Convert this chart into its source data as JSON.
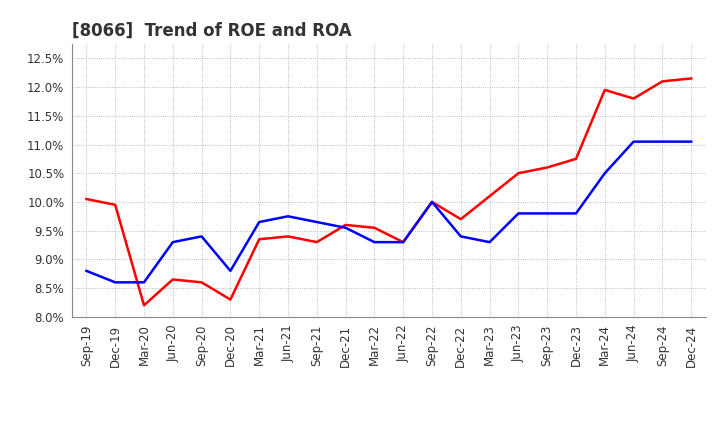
{
  "title": "[8066]  Trend of ROE and ROA",
  "x_labels": [
    "Sep-19",
    "Dec-19",
    "Mar-20",
    "Jun-20",
    "Sep-20",
    "Dec-20",
    "Mar-21",
    "Jun-21",
    "Sep-21",
    "Dec-21",
    "Mar-22",
    "Jun-22",
    "Sep-22",
    "Dec-22",
    "Mar-23",
    "Jun-23",
    "Sep-23",
    "Dec-23",
    "Mar-24",
    "Jun-24",
    "Sep-24",
    "Dec-24"
  ],
  "roe": [
    10.05,
    9.95,
    8.2,
    8.65,
    8.6,
    8.3,
    9.35,
    9.4,
    9.3,
    9.6,
    9.55,
    9.3,
    10.0,
    9.7,
    10.1,
    10.5,
    10.6,
    10.75,
    11.95,
    11.8,
    12.1,
    12.15
  ],
  "roa": [
    8.8,
    8.6,
    8.6,
    9.3,
    9.4,
    8.8,
    9.65,
    9.75,
    9.65,
    9.55,
    9.3,
    9.3,
    10.0,
    9.4,
    9.3,
    9.8,
    9.8,
    9.8,
    10.5,
    11.05,
    11.05,
    11.05
  ],
  "roe_color": "#FF0000",
  "roa_color": "#0000FF",
  "ylim": [
    8.0,
    12.75
  ],
  "yticks": [
    8.0,
    8.5,
    9.0,
    9.5,
    10.0,
    10.5,
    11.0,
    11.5,
    12.0,
    12.5
  ],
  "background_color": "#FFFFFF",
  "grid_color": "#AAAAAA",
  "title_fontsize": 12,
  "axis_fontsize": 8.5,
  "legend_fontsize": 10,
  "line_width": 1.8
}
